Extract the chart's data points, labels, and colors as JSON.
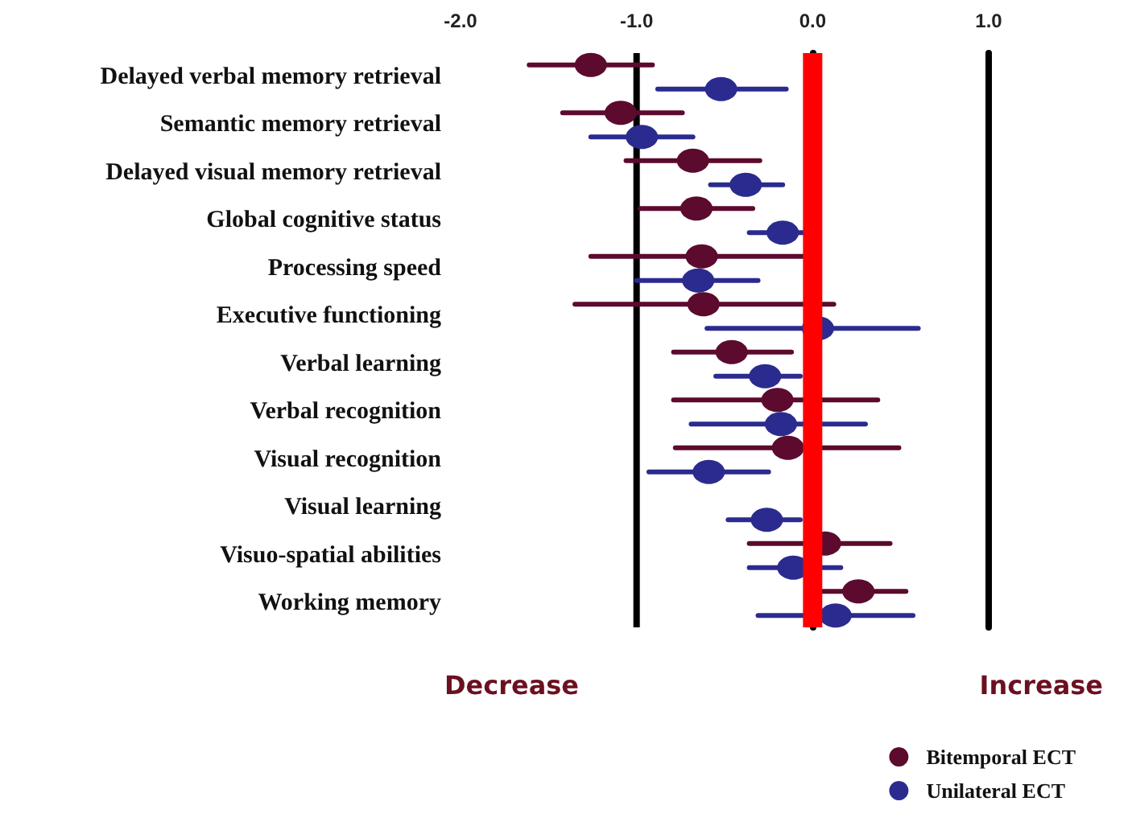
{
  "chart_data": {
    "type": "scatter",
    "orientation": "horizontal",
    "categories": [
      "Delayed verbal memory retrieval",
      "Semantic memory retrieval",
      "Delayed visual memory retrieval",
      "Global cognitive status",
      "Processing speed",
      "Executive functioning",
      "Verbal learning",
      "Verbal recognition",
      "Visual recognition",
      "Visual learning",
      "Visuo-spatial abilities",
      "Working memory"
    ],
    "series": [
      {
        "name": "Bitemporal ECT",
        "color": "#5c0a2e",
        "values": [
          -1.26,
          -1.09,
          -0.68,
          -0.66,
          -0.63,
          -0.62,
          -0.46,
          -0.2,
          -0.14,
          null,
          0.07,
          0.26
        ],
        "errors": [
          [
            -1.61,
            -0.91
          ],
          [
            -1.42,
            -0.74
          ],
          [
            -1.06,
            -0.3
          ],
          [
            -0.98,
            -0.34
          ],
          [
            -1.26,
            -0.05
          ],
          [
            -1.35,
            0.12
          ],
          [
            -0.79,
            -0.12
          ],
          [
            -0.79,
            0.37
          ],
          [
            -0.78,
            0.49
          ],
          null,
          [
            -0.36,
            0.44
          ],
          [
            0.05,
            0.53
          ]
        ]
      },
      {
        "name": "Unilateral ECT",
        "color": "#2b2b8f",
        "values": [
          -0.52,
          -0.97,
          -0.38,
          -0.17,
          -0.65,
          0.03,
          -0.27,
          -0.18,
          -0.59,
          -0.26,
          -0.11,
          0.13
        ],
        "errors": [
          [
            -0.88,
            -0.15
          ],
          [
            -1.26,
            -0.68
          ],
          [
            -0.58,
            -0.17
          ],
          [
            -0.36,
            -0.05
          ],
          [
            -1.0,
            -0.31
          ],
          [
            -0.6,
            0.6
          ],
          [
            -0.55,
            -0.07
          ],
          [
            -0.69,
            0.3
          ],
          [
            -0.93,
            -0.25
          ],
          [
            -0.48,
            -0.07
          ],
          [
            -0.36,
            0.16
          ],
          [
            -0.31,
            0.57
          ]
        ]
      }
    ],
    "xlim": [
      -2,
      1
    ],
    "xticks": [
      {
        "value": -2,
        "label": "-2.0"
      },
      {
        "value": -1,
        "label": "-1.0"
      },
      {
        "value": 0,
        "label": "0.0"
      },
      {
        "value": 1,
        "label": "1.0"
      }
    ],
    "marker": "circle",
    "legend": "bottom right",
    "ref_lines": [
      {
        "axis": "x",
        "value": -1,
        "color": "#000000"
      },
      {
        "axis": "x",
        "value": 0,
        "color": "#ff0000"
      }
    ],
    "annotations": [
      "Decrease",
      "Increase"
    ]
  }
}
